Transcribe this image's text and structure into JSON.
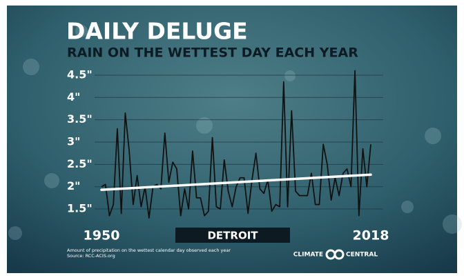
{
  "chart_data": {
    "type": "line",
    "title": "DAILY DELUGE",
    "subtitle": "RAIN ON THE WETTEST DAY EACH YEAR",
    "location": "DETROIT",
    "footnote": [
      "Amount of precipitation on the wettest calendar day observed each year",
      "Source: RCC-ACIS.org"
    ],
    "brand": [
      "CLIMATE",
      "CENTRAL"
    ],
    "x": [
      1950,
      1951,
      1952,
      1953,
      1954,
      1955,
      1956,
      1957,
      1958,
      1959,
      1960,
      1961,
      1962,
      1963,
      1964,
      1965,
      1966,
      1967,
      1968,
      1969,
      1970,
      1971,
      1972,
      1973,
      1974,
      1975,
      1976,
      1977,
      1978,
      1979,
      1980,
      1981,
      1982,
      1983,
      1984,
      1985,
      1986,
      1987,
      1988,
      1989,
      1990,
      1991,
      1992,
      1993,
      1994,
      1995,
      1996,
      1997,
      1998,
      1999,
      2000,
      2001,
      2002,
      2003,
      2004,
      2005,
      2006,
      2007,
      2008,
      2009,
      2010,
      2011,
      2012,
      2013,
      2014,
      2015,
      2016,
      2017,
      2018
    ],
    "series": [
      {
        "color": "#111111",
        "values": [
          2.0,
          2.05,
          1.35,
          1.6,
          3.3,
          1.4,
          3.65,
          2.8,
          1.6,
          2.25,
          1.55,
          2.0,
          1.3,
          2.0,
          2.05,
          1.95,
          3.2,
          2.1,
          2.55,
          2.4,
          1.35,
          1.95,
          1.5,
          2.8,
          1.75,
          1.75,
          1.35,
          1.45,
          3.1,
          1.55,
          1.5,
          2.6,
          1.9,
          1.55,
          2.0,
          2.2,
          2.2,
          1.4,
          2.15,
          2.75,
          1.95,
          1.85,
          2.15,
          1.45,
          1.6,
          1.55,
          4.35,
          1.55,
          3.7,
          1.9,
          1.8,
          1.8,
          1.8,
          2.3,
          1.6,
          1.6,
          2.95,
          2.5,
          1.7,
          2.2,
          1.8,
          2.3,
          2.4,
          2.0,
          4.6,
          1.35,
          2.85,
          2.0,
          2.95
        ]
      }
    ],
    "trend": {
      "color": "#ffffff",
      "x": [
        1950,
        2018
      ],
      "values": [
        1.93,
        2.27
      ]
    },
    "xlim": [
      1950,
      2018
    ],
    "xticks": [
      1950,
      2018
    ],
    "ylim": [
      1.3,
      4.7
    ],
    "yticks": [
      {
        "value": 1.5,
        "label": "1.5\""
      },
      {
        "value": 2,
        "label": "2\""
      },
      {
        "value": 2.5,
        "label": "2.5\""
      },
      {
        "value": 3,
        "label": "3\""
      },
      {
        "value": 3.5,
        "label": "3.5\""
      },
      {
        "value": 4,
        "label": "4\""
      },
      {
        "value": 4.5,
        "label": "4.5\""
      }
    ],
    "grid": true
  }
}
